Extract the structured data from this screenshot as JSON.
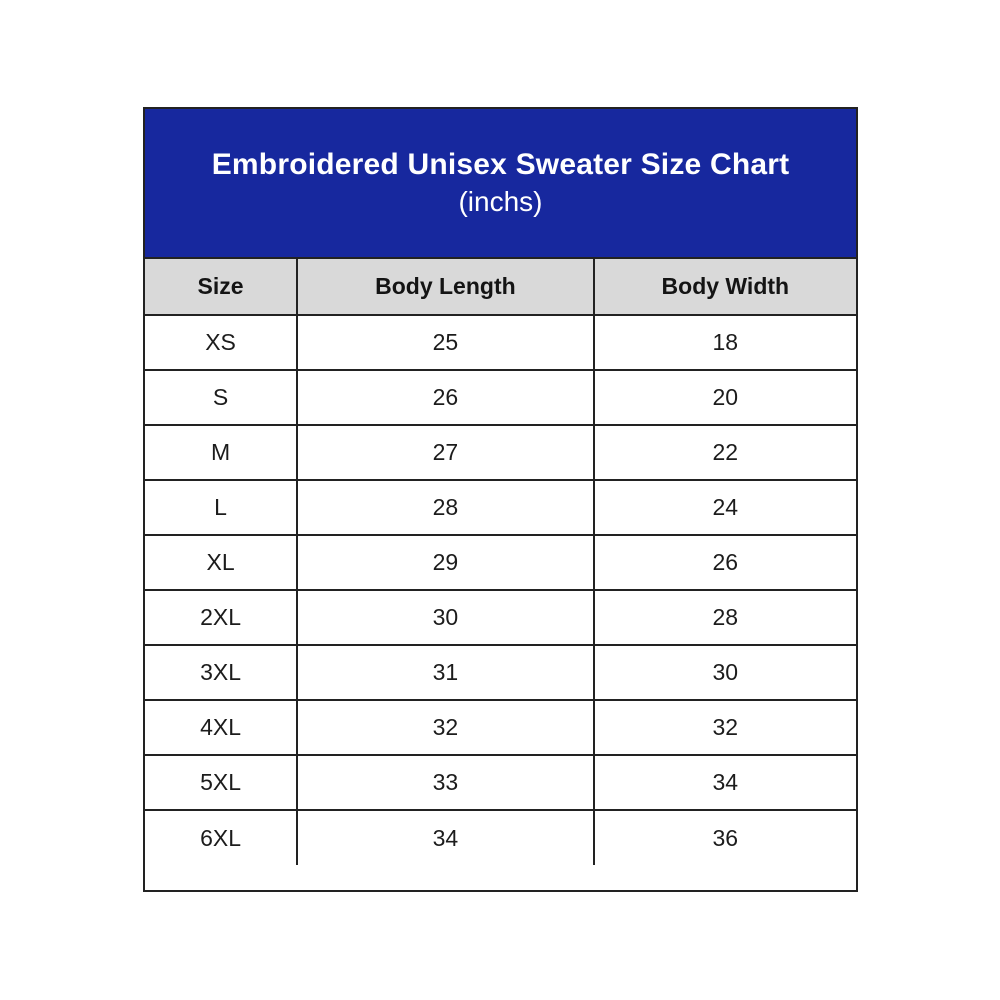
{
  "colors": {
    "header_bg": "#17289e",
    "header_text": "#ffffff",
    "col_header_bg": "#d9d9d9",
    "border": "#222222"
  },
  "chart_data": {
    "type": "table",
    "title": "Embroidered Unisex Sweater Size Chart",
    "subtitle": "(inchs)",
    "unit": "inchs",
    "columns": [
      "Size",
      "Body Length",
      "Body Width"
    ],
    "rows": [
      [
        "XS",
        "25",
        "18"
      ],
      [
        "S",
        "26",
        "20"
      ],
      [
        "M",
        "27",
        "22"
      ],
      [
        "L",
        "28",
        "24"
      ],
      [
        "XL",
        "29",
        "26"
      ],
      [
        "2XL",
        "30",
        "28"
      ],
      [
        "3XL",
        "31",
        "30"
      ],
      [
        "4XL",
        "32",
        "32"
      ],
      [
        "5XL",
        "33",
        "34"
      ],
      [
        "6XL",
        "34",
        "36"
      ]
    ]
  }
}
